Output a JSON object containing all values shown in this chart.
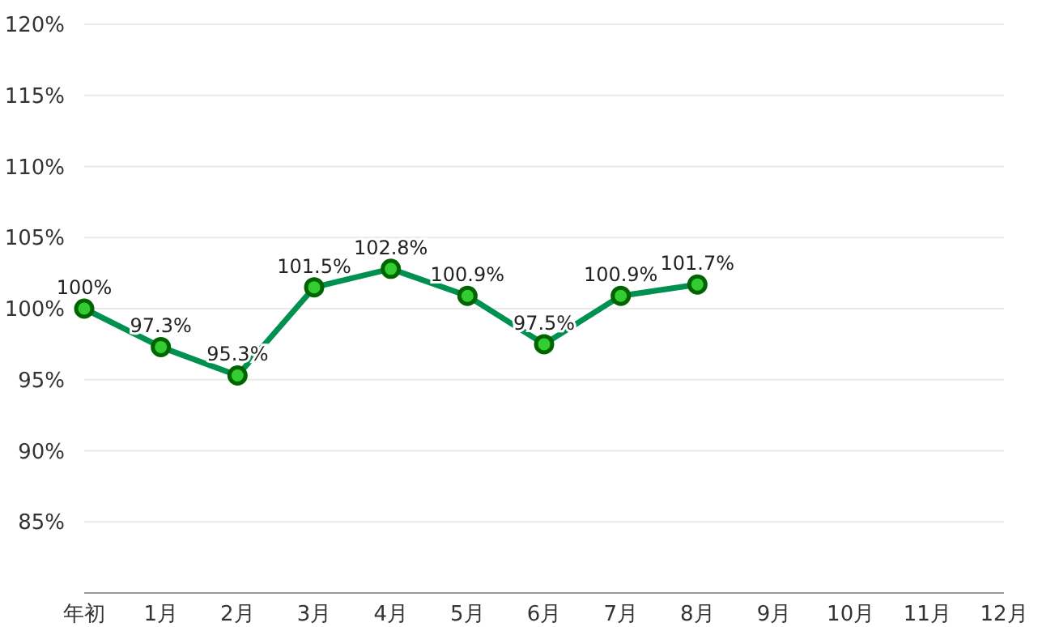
{
  "chart_data": {
    "type": "line",
    "categories": [
      "年初",
      "1月",
      "2月",
      "3月",
      "4月",
      "5月",
      "6月",
      "7月",
      "8月",
      "9月",
      "10月",
      "11月",
      "12月"
    ],
    "series": [
      {
        "color": "#009150",
        "values": [
          100,
          97.3,
          95.3,
          101.5,
          102.8,
          100.9,
          97.5,
          100.9,
          101.7,
          null,
          null,
          null,
          null
        ],
        "value_labels": [
          "100%",
          "97.3%",
          "95.3%",
          "101.5%",
          "102.8%",
          "100.9%",
          "97.5%",
          "100.9%",
          "101.7%",
          null,
          null,
          null,
          null
        ]
      }
    ],
    "ylim": [
      80,
      120
    ],
    "yticks": [
      {
        "value": 85,
        "label": "85%"
      },
      {
        "value": 90,
        "label": "90%"
      },
      {
        "value": 95,
        "label": "95%"
      },
      {
        "value": 100,
        "label": "100%"
      },
      {
        "value": 105,
        "label": "105%"
      },
      {
        "value": 110,
        "label": "110%"
      },
      {
        "value": 115,
        "label": "115%"
      },
      {
        "value": 120,
        "label": "120%"
      }
    ],
    "grid": "y",
    "marker": "circle",
    "line_style": "solid"
  }
}
